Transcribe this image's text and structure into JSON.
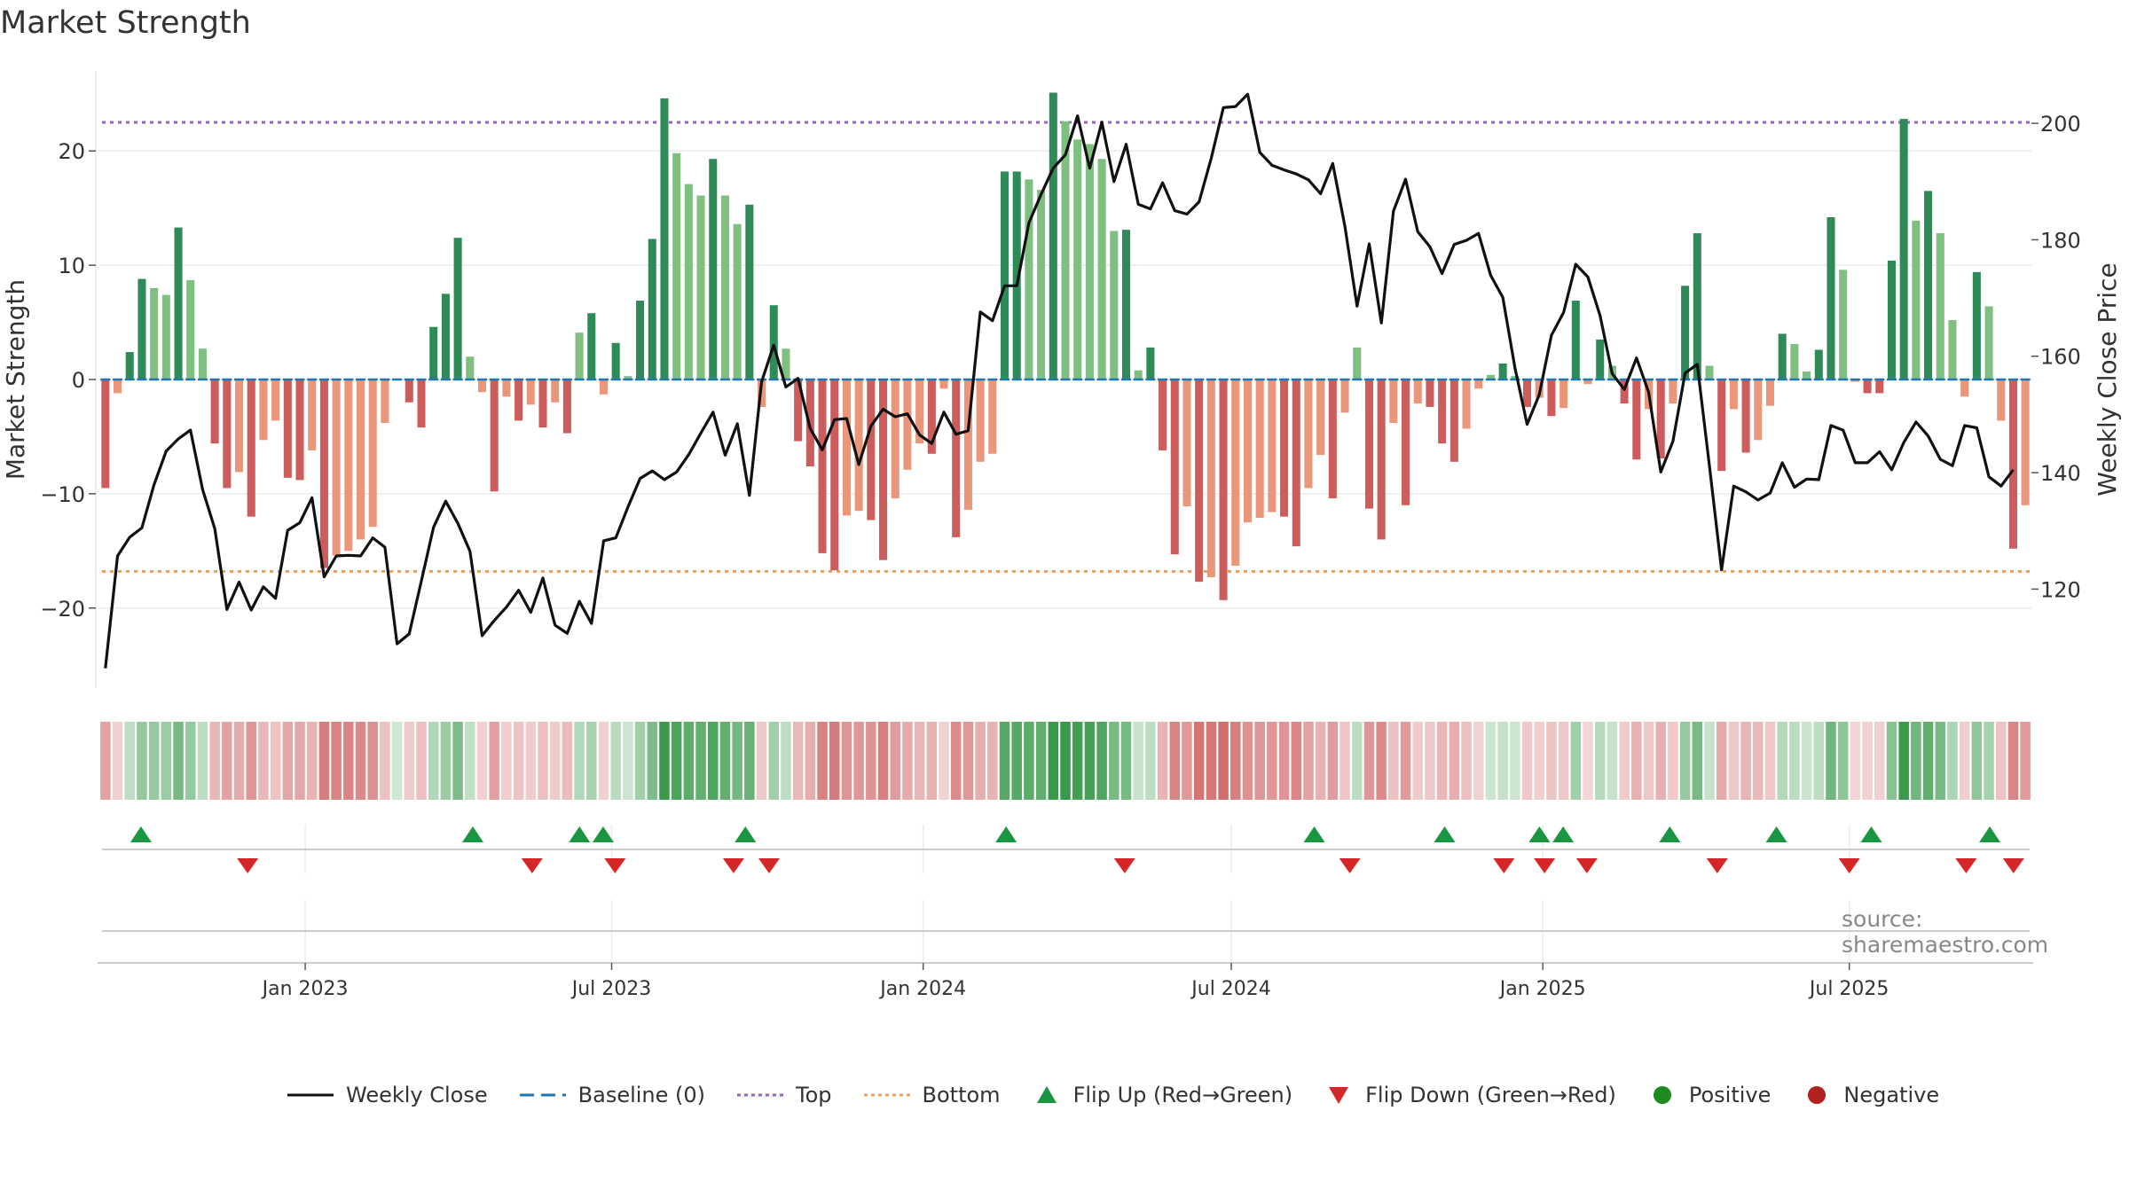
{
  "title": "Market Strength",
  "source": "source: sharemaestro.com",
  "colors": {
    "strong_green": "#2e8b57",
    "light_green": "#7fbf7f",
    "strong_red": "#cd5c5c",
    "light_red": "#e9967a",
    "line": "#111111",
    "baseline": "#1f77b4",
    "top": "#9467bd",
    "bottom": "#e8a35f",
    "flip_up": "#1a9641",
    "flip_down": "#d62728",
    "positive": "#1f8a1f",
    "negative": "#b22222"
  },
  "legend": [
    {
      "label": "Weekly Close",
      "icon": "line-solid"
    },
    {
      "label": "Baseline (0)",
      "icon": "line-dashed"
    },
    {
      "label": "Top",
      "icon": "line-dotted"
    },
    {
      "label": "Bottom",
      "icon": "line-dotted"
    },
    {
      "label": "Flip Up (Red→Green)",
      "icon": "triangle-up"
    },
    {
      "label": "Flip Down (Green→Red)",
      "icon": "triangle-down"
    },
    {
      "label": "Positive",
      "icon": "circle"
    },
    {
      "label": "Negative",
      "icon": "circle"
    }
  ],
  "chart_data": {
    "type": "bar",
    "title": "Market Strength",
    "ylabel": "Market Strength",
    "y2label": "Weekly Close Price",
    "ylim": [
      -27,
      27
    ],
    "y2lim": [
      103,
      209
    ],
    "yticks": [
      -20,
      -10,
      0,
      10,
      20
    ],
    "y2ticks": [
      120,
      140,
      160,
      180,
      200
    ],
    "date_range": [
      "2022-09-05",
      "2025-10-13"
    ],
    "xticks": [
      {
        "date": "2023-01-01",
        "label": "Jan 2023"
      },
      {
        "date": "2023-07-01",
        "label": "Jul 2023"
      },
      {
        "date": "2024-01-01",
        "label": "Jan 2024"
      },
      {
        "date": "2024-07-01",
        "label": "Jul 2024"
      },
      {
        "date": "2025-01-01",
        "label": "Jan 2025"
      },
      {
        "date": "2025-07-01",
        "label": "Jul 2025"
      }
    ],
    "top_line": 22.5,
    "bottom_line": -16.8,
    "baseline": 0,
    "grid": true,
    "legend_position": "bottom",
    "strength": [
      -9.5,
      -1.2,
      2.4,
      8.8,
      8.0,
      7.4,
      13.3,
      8.7,
      2.7,
      -5.6,
      -9.5,
      -8.1,
      -12.0,
      -5.3,
      -3.6,
      -8.6,
      -8.8,
      -6.2,
      -16.5,
      -15.4,
      -15.0,
      -14.0,
      -12.9,
      -3.8,
      0,
      -2.0,
      -4.2,
      4.6,
      7.5,
      12.4,
      2.0,
      -1.1,
      -9.8,
      -1.5,
      -3.6,
      -2.2,
      -4.2,
      -2.0,
      -4.7,
      4.1,
      5.8,
      -1.3,
      3.2,
      0.3,
      6.9,
      12.3,
      24.6,
      19.8,
      17.1,
      16.1,
      19.3,
      16.1,
      13.6,
      15.3,
      -2.4,
      6.5,
      2.7,
      -5.4,
      -7.6,
      -15.2,
      -16.7,
      -11.9,
      -11.5,
      -12.3,
      -15.8,
      -10.4,
      -7.9,
      -5.6,
      -6.5,
      -0.8,
      -13.8,
      -11.4,
      -7.2,
      -6.5,
      18.2,
      18.2,
      17.5,
      16.6,
      25.1,
      22.6,
      21.0,
      20.6,
      19.3,
      13.0,
      13.1,
      0.8,
      2.8,
      -6.2,
      -15.3,
      -11.1,
      -17.7,
      -17.3,
      -19.3,
      -16.3,
      -12.5,
      -12.1,
      -11.6,
      -12.0,
      -14.6,
      -9.5,
      -6.6,
      -10.4,
      -2.9,
      2.8,
      -11.3,
      -14.0,
      -3.8,
      -11.0,
      -2.1,
      -2.4,
      -5.6,
      -7.2,
      -4.3,
      -0.8,
      0.4,
      1.4,
      0.3,
      -2.4,
      -1.6,
      -3.2,
      -2.5,
      6.9,
      -0.4,
      3.5,
      1.2,
      -2.1,
      -7.0,
      -2.6,
      -6.9,
      -2.1,
      8.2,
      12.8,
      1.2,
      -8.0,
      -2.6,
      -6.4,
      -5.3,
      -2.3,
      4.0,
      3.1,
      0.7,
      2.6,
      14.2,
      9.6,
      -0.2,
      -1.2,
      -1.2,
      10.4,
      22.8,
      13.9,
      16.5,
      12.8,
      5.2,
      -1.5,
      9.4,
      6.4,
      -3.6,
      -14.8,
      -11.0
    ],
    "close": [
      106.4,
      125.7,
      128.9,
      130.5,
      137.9,
      143.7,
      145.8,
      147.3,
      137.1,
      130.4,
      116.5,
      121.2,
      116.4,
      120.4,
      118.4,
      130.1,
      131.4,
      135.7,
      122.1,
      125.7,
      125.8,
      125.7,
      128.8,
      127.2,
      110.6,
      112.3,
      121.4,
      130.6,
      135.1,
      131.3,
      126.5,
      112.0,
      114.6,
      116.9,
      119.8,
      116.0,
      121.9,
      113.8,
      112.4,
      117.9,
      114.1,
      128.3,
      128.8,
      134.1,
      139.0,
      140.3,
      138.8,
      140.1,
      143.1,
      146.8,
      150.4,
      143.0,
      148.4,
      136.1,
      155.6,
      161.9,
      154.7,
      156.2,
      147.6,
      143.9,
      149.1,
      149.3,
      141.4,
      148.0,
      150.9,
      149.6,
      150.1,
      146.5,
      145.0,
      150.4,
      146.6,
      147.2,
      167.6,
      166.1,
      172.1,
      172.1,
      182.9,
      187.8,
      192.3,
      194.6,
      201.3,
      192.3,
      200.2,
      190.0,
      196.4,
      186.1,
      185.3,
      189.8,
      185.0,
      184.4,
      186.5,
      194.0,
      202.7,
      202.9,
      205.0,
      195.0,
      192.8,
      192.0,
      191.3,
      190.3,
      187.9,
      193.1,
      182.3,
      168.6,
      179.3,
      165.7,
      184.9,
      190.4,
      181.4,
      178.8,
      174.2,
      179.2,
      179.9,
      181.1,
      173.9,
      170.1,
      158.0,
      148.3,
      153.4,
      163.6,
      167.5,
      175.8,
      173.6,
      167.0,
      157.0,
      154.3,
      159.7,
      153.8,
      140.1,
      145.4,
      157.1,
      158.6,
      141.2,
      123.3,
      137.7,
      136.7,
      135.3,
      136.5,
      141.7,
      137.5,
      138.9,
      138.8,
      148.1,
      147.3,
      141.7,
      141.7,
      143.6,
      140.5,
      145.2,
      148.7,
      146.3,
      142.3,
      141.2,
      148.1,
      147.7,
      139.3,
      137.7,
      140.5
    ],
    "flip_up_dates": [
      "2022-09-26",
      "2023-04-10",
      "2023-06-12",
      "2023-06-26",
      "2023-09-18",
      "2024-02-19",
      "2024-08-19",
      "2024-11-04",
      "2024-12-30",
      "2025-01-13",
      "2025-03-17",
      "2025-05-19",
      "2025-07-14",
      "2025-09-22"
    ],
    "flip_down_dates": [
      "2022-11-28",
      "2023-05-15",
      "2023-07-03",
      "2023-09-11",
      "2023-10-02",
      "2024-04-29",
      "2024-09-09",
      "2024-12-09",
      "2025-01-02",
      "2025-01-27",
      "2025-04-14",
      "2025-07-01",
      "2025-09-08",
      "2025-10-06"
    ]
  }
}
